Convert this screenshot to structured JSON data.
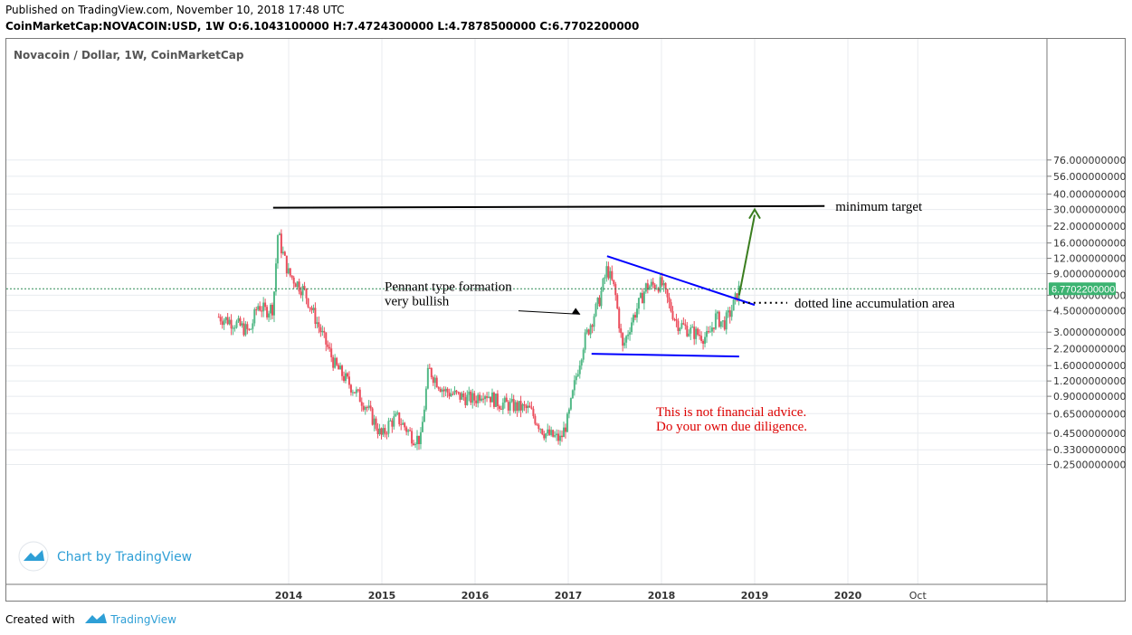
{
  "header": {
    "published": "Published on TradingView.com, November 10, 2018 17:48 UTC",
    "ohlc": "CoinMarketCap:NOVACOIN:USD, 1W  O:6.1043100000 H:7.4724300000 L:4.7878500000 C:6.7702200000"
  },
  "legend": "Novacoin / Dollar, 1W, CoinMarketCap",
  "watermark": "Chart by TradingView",
  "footer": {
    "created_with": "Created with",
    "brand": "TradingView"
  },
  "colors": {
    "up": "#53b987",
    "down": "#eb4d5c",
    "grid": "#e8ebef",
    "price_line": "#2e8b57",
    "price_label_bg": "#3cb371",
    "resistance": "#000000",
    "pennant": "#0000ff",
    "target_arrow": "#3a7d1e",
    "disclaimer": "#dd0000",
    "brand": "#2e9fd6"
  },
  "chart_data": {
    "type": "candlestick",
    "title": "Novacoin / Dollar, 1W, CoinMarketCap",
    "y_scale": "log",
    "ylim": [
      0.2,
      80
    ],
    "y_ticks": [
      "76.0000000000",
      "56.0000000000",
      "40.0000000000",
      "30.0000000000",
      "22.0000000000",
      "16.0000000000",
      "12.0000000000",
      "9.0000000000",
      "6.0000000000",
      "4.5000000000",
      "3.0000000000",
      "2.2000000000",
      "1.6000000000",
      "1.2000000000",
      "0.9000000000",
      "0.6500000000",
      "0.4500000000",
      "0.3300000000",
      "0.2500000000"
    ],
    "x_ticks": [
      "2014",
      "2015",
      "2016",
      "2017",
      "2018",
      "2019",
      "2020",
      "Oct"
    ],
    "last_price_label": "6.7702200000",
    "last_price": 6.77022,
    "last_ohlc": {
      "open": 6.10431,
      "high": 7.47243,
      "low": 4.78785,
      "close": 6.77022
    },
    "price_path": [
      [
        "2013-04",
        4.0
      ],
      [
        "2013-06",
        3.6
      ],
      [
        "2013-08",
        3.0
      ],
      [
        "2013-09",
        5.0
      ],
      [
        "2013-10",
        4.5
      ],
      [
        "2013-11",
        4.8
      ],
      [
        "2013-11-20",
        20.0
      ],
      [
        "2013-12",
        15.0
      ],
      [
        "2014-01",
        9.0
      ],
      [
        "2014-03",
        6.5
      ],
      [
        "2014-05",
        3.2
      ],
      [
        "2014-07",
        1.6
      ],
      [
        "2014-09",
        1.1
      ],
      [
        "2014-11",
        0.75
      ],
      [
        "2015-01",
        0.42
      ],
      [
        "2015-02",
        0.55
      ],
      [
        "2015-03",
        0.6
      ],
      [
        "2015-05",
        0.42
      ],
      [
        "2015-06",
        0.4
      ],
      [
        "2015-07",
        1.5
      ],
      [
        "2015-09",
        1.0
      ],
      [
        "2015-11",
        0.9
      ],
      [
        "2016-01",
        0.85
      ],
      [
        "2016-02",
        1.0
      ],
      [
        "2016-04",
        0.8
      ],
      [
        "2016-06",
        0.75
      ],
      [
        "2016-08",
        0.7
      ],
      [
        "2016-10",
        0.45
      ],
      [
        "2016-12",
        0.4
      ],
      [
        "2017-01",
        0.6
      ],
      [
        "2017-02",
        1.3
      ],
      [
        "2017-03",
        2.5
      ],
      [
        "2017-05",
        5.5
      ],
      [
        "2017-06",
        10.0
      ],
      [
        "2017-07",
        6.5
      ],
      [
        "2017-08",
        2.2
      ],
      [
        "2017-09",
        3.5
      ],
      [
        "2017-11",
        7.0
      ],
      [
        "2018-01",
        7.5
      ],
      [
        "2018-02",
        5.0
      ],
      [
        "2018-03",
        3.6
      ],
      [
        "2018-05",
        3.0
      ],
      [
        "2018-07",
        2.7
      ],
      [
        "2018-08",
        4.0
      ],
      [
        "2018-09",
        3.5
      ],
      [
        "2018-10",
        4.5
      ],
      [
        "2018-11",
        6.77022
      ]
    ],
    "annotations": {
      "resistance": {
        "label": "minimum target",
        "from": [
          "2013-11",
          31.0
        ],
        "to": [
          "2019-10",
          32.0
        ]
      },
      "pennant_upper": {
        "from": [
          "2017-06",
          12.5
        ],
        "to": [
          "2019-01",
          5.0
        ]
      },
      "pennant_lower": {
        "from": [
          "2017-04",
          2.0
        ],
        "to": [
          "2018-11",
          1.9
        ]
      },
      "target_arrow": {
        "from": [
          "2018-11",
          6.0
        ],
        "to": [
          "2019-01",
          30.0
        ]
      },
      "dotted_line": {
        "label": "dotted line accumulation area"
      },
      "pennant_label": [
        "Pennant  type formation",
        "very bullish"
      ],
      "disclaimer": [
        "This is not financial advice.",
        "Do your own due diligence."
      ]
    }
  }
}
